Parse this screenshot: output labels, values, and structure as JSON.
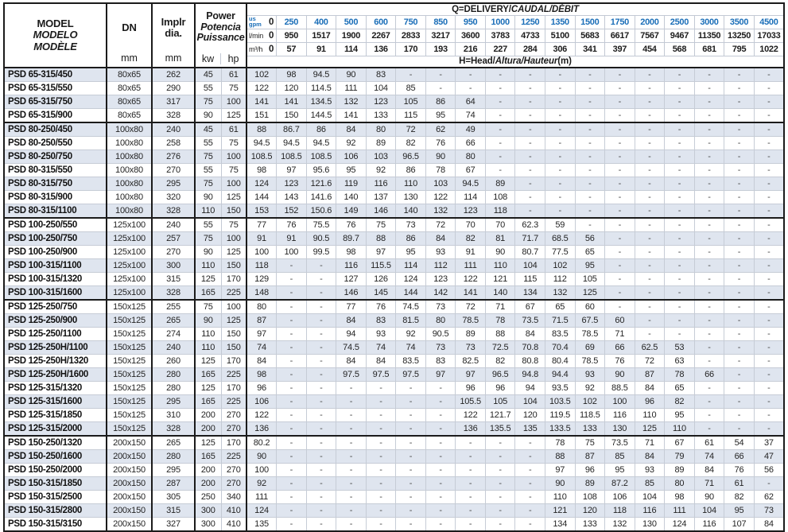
{
  "table": {
    "header": {
      "model_lines": [
        "MODEL",
        "MODELO",
        "MODÈLE"
      ],
      "dn_label": "DN",
      "dn_unit": "mm",
      "implr_lines": [
        "Implr",
        "dia."
      ],
      "implr_unit": "mm",
      "power_lines": [
        "Power",
        "Potencia",
        "Puissance"
      ],
      "kw_label": "kw",
      "hp_label": "hp",
      "q_title_main": "Q=DELIVERY/",
      "q_title_italic": "CAUDAL/DÉBIT",
      "h_title_main": "H=Head/",
      "h_title_italic": "Altura/Hauteur",
      "h_title_suffix": "(m)",
      "gpm_label_lines": [
        "us",
        "gpm"
      ],
      "lmin_label": "l/min",
      "m3h_label": "m³/h",
      "gpm": [
        "0",
        "250",
        "400",
        "500",
        "600",
        "750",
        "850",
        "950",
        "1000",
        "1250",
        "1350",
        "1500",
        "1750",
        "2000",
        "2500",
        "3000",
        "3500",
        "4500"
      ],
      "lmin": [
        "0",
        "950",
        "1517",
        "1900",
        "2267",
        "2833",
        "3217",
        "3600",
        "3783",
        "4733",
        "5100",
        "5683",
        "6617",
        "7567",
        "9467",
        "11350",
        "13250",
        "17033"
      ],
      "m3h": [
        "0",
        "57",
        "91",
        "114",
        "136",
        "170",
        "193",
        "216",
        "227",
        "284",
        "306",
        "341",
        "397",
        "454",
        "568",
        "681",
        "795",
        "1022"
      ]
    },
    "rows": [
      {
        "model": "PSD 65-315/450",
        "dn": "80x65",
        "implr": "262",
        "kw": "45",
        "hp": "61",
        "h": [
          "102",
          "98",
          "94.5",
          "90",
          "83",
          "-",
          "-",
          "-",
          "-",
          "-",
          "-",
          "-",
          "-",
          "-",
          "-",
          "-",
          "-",
          "-"
        ]
      },
      {
        "model": "PSD 65-315/550",
        "dn": "80x65",
        "implr": "290",
        "kw": "55",
        "hp": "75",
        "h": [
          "122",
          "120",
          "114.5",
          "111",
          "104",
          "85",
          "-",
          "-",
          "-",
          "-",
          "-",
          "-",
          "-",
          "-",
          "-",
          "-",
          "-",
          "-"
        ]
      },
      {
        "model": "PSD 65-315/750",
        "dn": "80x65",
        "implr": "317",
        "kw": "75",
        "hp": "100",
        "h": [
          "141",
          "141",
          "134.5",
          "132",
          "123",
          "105",
          "86",
          "64",
          "-",
          "-",
          "-",
          "-",
          "-",
          "-",
          "-",
          "-",
          "-",
          "-"
        ]
      },
      {
        "model": "PSD 65-315/900",
        "dn": "80x65",
        "implr": "328",
        "kw": "90",
        "hp": "125",
        "h": [
          "151",
          "150",
          "144.5",
          "141",
          "133",
          "115",
          "95",
          "74",
          "-",
          "-",
          "-",
          "-",
          "-",
          "-",
          "-",
          "-",
          "-",
          "-"
        ]
      },
      {
        "model": "PSD 80-250/450",
        "dn": "100x80",
        "implr": "240",
        "kw": "45",
        "hp": "61",
        "h": [
          "88",
          "86.7",
          "86",
          "84",
          "80",
          "72",
          "62",
          "49",
          "-",
          "-",
          "-",
          "-",
          "-",
          "-",
          "-",
          "-",
          "-",
          "-"
        ]
      },
      {
        "model": "PSD 80-250/550",
        "dn": "100x80",
        "implr": "258",
        "kw": "55",
        "hp": "75",
        "h": [
          "94.5",
          "94.5",
          "94.5",
          "92",
          "89",
          "82",
          "76",
          "66",
          "-",
          "-",
          "-",
          "-",
          "-",
          "-",
          "-",
          "-",
          "-",
          "-"
        ]
      },
      {
        "model": "PSD 80-250/750",
        "dn": "100x80",
        "implr": "276",
        "kw": "75",
        "hp": "100",
        "h": [
          "108.5",
          "108.5",
          "108.5",
          "106",
          "103",
          "96.5",
          "90",
          "80",
          "-",
          "-",
          "-",
          "-",
          "-",
          "-",
          "-",
          "-",
          "-",
          "-"
        ]
      },
      {
        "model": "PSD 80-315/550",
        "dn": "100x80",
        "implr": "270",
        "kw": "55",
        "hp": "75",
        "h": [
          "98",
          "97",
          "95.6",
          "95",
          "92",
          "86",
          "78",
          "67",
          "-",
          "-",
          "-",
          "-",
          "-",
          "-",
          "-",
          "-",
          "-",
          "-"
        ]
      },
      {
        "model": "PSD 80-315/750",
        "dn": "100x80",
        "implr": "295",
        "kw": "75",
        "hp": "100",
        "h": [
          "124",
          "123",
          "121.6",
          "119",
          "116",
          "110",
          "103",
          "94.5",
          "89",
          "-",
          "-",
          "-",
          "-",
          "-",
          "-",
          "-",
          "-",
          "-"
        ]
      },
      {
        "model": "PSD 80-315/900",
        "dn": "100x80",
        "implr": "320",
        "kw": "90",
        "hp": "125",
        "h": [
          "144",
          "143",
          "141.6",
          "140",
          "137",
          "130",
          "122",
          "114",
          "108",
          "-",
          "-",
          "-",
          "-",
          "-",
          "-",
          "-",
          "-",
          "-"
        ]
      },
      {
        "model": "PSD 80-315/1100",
        "dn": "100x80",
        "implr": "328",
        "kw": "110",
        "hp": "150",
        "h": [
          "153",
          "152",
          "150.6",
          "149",
          "146",
          "140",
          "132",
          "123",
          "118",
          "-",
          "-",
          "-",
          "-",
          "-",
          "-",
          "-",
          "-",
          "-"
        ]
      },
      {
        "model": "PSD 100-250/550",
        "dn": "125x100",
        "implr": "240",
        "kw": "55",
        "hp": "75",
        "h": [
          "77",
          "76",
          "75.5",
          "76",
          "75",
          "73",
          "72",
          "70",
          "70",
          "62.3",
          "59",
          "-",
          "-",
          "-",
          "-",
          "-",
          "-",
          "-"
        ]
      },
      {
        "model": "PSD 100-250/750",
        "dn": "125x100",
        "implr": "257",
        "kw": "75",
        "hp": "100",
        "h": [
          "91",
          "91",
          "90.5",
          "89.7",
          "88",
          "86",
          "84",
          "82",
          "81",
          "71.7",
          "68.5",
          "56",
          "-",
          "-",
          "-",
          "-",
          "-",
          "-"
        ]
      },
      {
        "model": "PSD 100-250/900",
        "dn": "125x100",
        "implr": "270",
        "kw": "90",
        "hp": "125",
        "h": [
          "100",
          "100",
          "99.5",
          "98",
          "97",
          "95",
          "93",
          "91",
          "90",
          "80.7",
          "77.5",
          "65",
          "-",
          "-",
          "-",
          "-",
          "-",
          "-"
        ]
      },
      {
        "model": "PSD 100-315/1100",
        "dn": "125x100",
        "implr": "300",
        "kw": "110",
        "hp": "150",
        "h": [
          "118",
          "-",
          "-",
          "116",
          "115.5",
          "114",
          "112",
          "111",
          "110",
          "104",
          "102",
          "95",
          "-",
          "-",
          "-",
          "-",
          "-",
          "-"
        ]
      },
      {
        "model": "PSD 100-315/1320",
        "dn": "125x100",
        "implr": "315",
        "kw": "125",
        "hp": "170",
        "h": [
          "129",
          "-",
          "-",
          "127",
          "126",
          "124",
          "123",
          "122",
          "121",
          "115",
          "112",
          "105",
          "-",
          "-",
          "-",
          "-",
          "-",
          "-"
        ]
      },
      {
        "model": "PSD 100-315/1600",
        "dn": "125x100",
        "implr": "328",
        "kw": "165",
        "hp": "225",
        "h": [
          "148",
          "-",
          "-",
          "146",
          "145",
          "144",
          "142",
          "141",
          "140",
          "134",
          "132",
          "125",
          "-",
          "-",
          "-",
          "-",
          "-",
          "-"
        ]
      },
      {
        "model": "PSD 125-250/750",
        "dn": "150x125",
        "implr": "255",
        "kw": "75",
        "hp": "100",
        "h": [
          "80",
          "-",
          "-",
          "77",
          "76",
          "74.5",
          "73",
          "72",
          "71",
          "67",
          "65",
          "60",
          "-",
          "-",
          "-",
          "-",
          "-",
          "-"
        ]
      },
      {
        "model": "PSD 125-250/900",
        "dn": "150x125",
        "implr": "265",
        "kw": "90",
        "hp": "125",
        "h": [
          "87",
          "-",
          "-",
          "84",
          "83",
          "81.5",
          "80",
          "78.5",
          "78",
          "73.5",
          "71.5",
          "67.5",
          "60",
          "-",
          "-",
          "-",
          "-",
          "-"
        ]
      },
      {
        "model": "PSD 125-250/1100",
        "dn": "150x125",
        "implr": "274",
        "kw": "110",
        "hp": "150",
        "h": [
          "97",
          "-",
          "-",
          "94",
          "93",
          "92",
          "90.5",
          "89",
          "88",
          "84",
          "83.5",
          "78.5",
          "71",
          "-",
          "-",
          "-",
          "-",
          "-"
        ]
      },
      {
        "model": "PSD 125-250H/1100",
        "dn": "150x125",
        "implr": "240",
        "kw": "110",
        "hp": "150",
        "h": [
          "74",
          "-",
          "-",
          "74.5",
          "74",
          "74",
          "73",
          "73",
          "72.5",
          "70.8",
          "70.4",
          "69",
          "66",
          "62.5",
          "53",
          "-",
          "-",
          "-"
        ]
      },
      {
        "model": "PSD 125-250H/1320",
        "dn": "150x125",
        "implr": "260",
        "kw": "125",
        "hp": "170",
        "h": [
          "84",
          "-",
          "-",
          "84",
          "84",
          "83.5",
          "83",
          "82.5",
          "82",
          "80.8",
          "80.4",
          "78.5",
          "76",
          "72",
          "63",
          "-",
          "-",
          "-"
        ]
      },
      {
        "model": "PSD 125-250H/1600",
        "dn": "150x125",
        "implr": "280",
        "kw": "165",
        "hp": "225",
        "h": [
          "98",
          "-",
          "-",
          "97.5",
          "97.5",
          "97.5",
          "97",
          "97",
          "96.5",
          "94.8",
          "94.4",
          "93",
          "90",
          "87",
          "78",
          "66",
          "-",
          "-"
        ]
      },
      {
        "model": "PSD 125-315/1320",
        "dn": "150x125",
        "implr": "280",
        "kw": "125",
        "hp": "170",
        "h": [
          "96",
          "-",
          "-",
          "-",
          "-",
          "-",
          "-",
          "96",
          "96",
          "94",
          "93.5",
          "92",
          "88.5",
          "84",
          "65",
          "-",
          "-",
          "-"
        ]
      },
      {
        "model": "PSD 125-315/1600",
        "dn": "150x125",
        "implr": "295",
        "kw": "165",
        "hp": "225",
        "h": [
          "106",
          "-",
          "-",
          "-",
          "-",
          "-",
          "-",
          "105.5",
          "105",
          "104",
          "103.5",
          "102",
          "100",
          "96",
          "82",
          "-",
          "-",
          "-"
        ]
      },
      {
        "model": "PSD 125-315/1850",
        "dn": "150x125",
        "implr": "310",
        "kw": "200",
        "hp": "270",
        "h": [
          "122",
          "-",
          "-",
          "-",
          "-",
          "-",
          "-",
          "122",
          "121.7",
          "120",
          "119.5",
          "118.5",
          "116",
          "110",
          "95",
          "-",
          "-",
          "-"
        ]
      },
      {
        "model": "PSD 125-315/2000",
        "dn": "150x125",
        "implr": "328",
        "kw": "200",
        "hp": "270",
        "h": [
          "136",
          "-",
          "-",
          "-",
          "-",
          "-",
          "-",
          "136",
          "135.5",
          "135",
          "133.5",
          "133",
          "130",
          "125",
          "110",
          "-",
          "-",
          "-"
        ]
      },
      {
        "model": "PSD 150-250/1320",
        "dn": "200x150",
        "implr": "265",
        "kw": "125",
        "hp": "170",
        "h": [
          "80.2",
          "-",
          "-",
          "-",
          "-",
          "-",
          "-",
          "-",
          "-",
          "-",
          "78",
          "75",
          "73.5",
          "71",
          "67",
          "61",
          "54",
          "37"
        ]
      },
      {
        "model": "PSD 150-250/1600",
        "dn": "200x150",
        "implr": "280",
        "kw": "165",
        "hp": "225",
        "h": [
          "90",
          "-",
          "-",
          "-",
          "-",
          "-",
          "-",
          "-",
          "-",
          "-",
          "88",
          "87",
          "85",
          "84",
          "79",
          "74",
          "66",
          "47"
        ]
      },
      {
        "model": "PSD 150-250/2000",
        "dn": "200x150",
        "implr": "295",
        "kw": "200",
        "hp": "270",
        "h": [
          "100",
          "-",
          "-",
          "-",
          "-",
          "-",
          "-",
          "-",
          "-",
          "-",
          "97",
          "96",
          "95",
          "93",
          "89",
          "84",
          "76",
          "56"
        ]
      },
      {
        "model": "PSD 150-315/1850",
        "dn": "200x150",
        "implr": "287",
        "kw": "200",
        "hp": "270",
        "h": [
          "92",
          "-",
          "-",
          "-",
          "-",
          "-",
          "-",
          "-",
          "-",
          "-",
          "90",
          "89",
          "87.2",
          "85",
          "80",
          "71",
          "61",
          "-"
        ]
      },
      {
        "model": "PSD 150-315/2500",
        "dn": "200x150",
        "implr": "305",
        "kw": "250",
        "hp": "340",
        "h": [
          "111",
          "-",
          "-",
          "-",
          "-",
          "-",
          "-",
          "-",
          "-",
          "-",
          "110",
          "108",
          "106",
          "104",
          "98",
          "90",
          "82",
          "62"
        ]
      },
      {
        "model": "PSD 150-315/2800",
        "dn": "200x150",
        "implr": "315",
        "kw": "300",
        "hp": "410",
        "h": [
          "124",
          "-",
          "-",
          "-",
          "-",
          "-",
          "-",
          "-",
          "-",
          "-",
          "121",
          "120",
          "118",
          "116",
          "111",
          "104",
          "95",
          "73"
        ]
      },
      {
        "model": "PSD 150-315/3150",
        "dn": "200x150",
        "implr": "327",
        "kw": "300",
        "hp": "410",
        "h": [
          "135",
          "-",
          "-",
          "-",
          "-",
          "-",
          "-",
          "-",
          "-",
          "-",
          "134",
          "133",
          "132",
          "130",
          "124",
          "116",
          "107",
          "84"
        ]
      }
    ]
  },
  "colors": {
    "accent_blue": "#1a6eb8",
    "stripe": "#dfe5ef",
    "grid_light": "#c6ccd6",
    "border_dark": "#1b1b1b"
  }
}
